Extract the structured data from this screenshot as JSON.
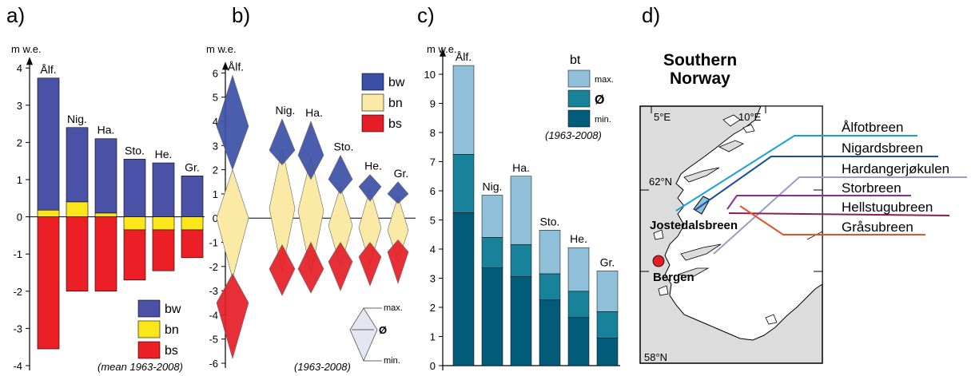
{
  "colors": {
    "bw": "#4a52a8",
    "bn": "#fbe61a",
    "bs": "#ec1f27",
    "bw_light": "#3c4fa6",
    "bn_light": "#fbe9a6",
    "bs_light": "#e41d26",
    "bt_max": "#8fbfd9",
    "bt_mean": "#17829a",
    "bt_min": "#035b7a",
    "sea": "#dcdcdc",
    "land": "#ffffff"
  },
  "chart_data": [
    {
      "type": "bar",
      "panel": "a)",
      "unit": "m w.e.",
      "ylim": [
        -4,
        4
      ],
      "yticks": [
        4,
        3,
        2,
        1,
        0,
        -1,
        -2,
        -3,
        -4
      ],
      "categories": [
        "Ålf.",
        "Nig.",
        "Ha.",
        "Sto.",
        "He.",
        "Gr."
      ],
      "series": [
        {
          "name": "bw",
          "values": [
            3.55,
            2.0,
            2.0,
            1.55,
            1.45,
            1.1
          ]
        },
        {
          "name": "bn",
          "values": [
            0.18,
            0.4,
            0.1,
            -0.35,
            -0.35,
            -0.35
          ]
        },
        {
          "name": "bs",
          "values": [
            -3.55,
            -2.0,
            -2.0,
            -1.7,
            -1.45,
            -1.1
          ]
        }
      ],
      "legend": [
        "bw",
        "bn",
        "bs"
      ],
      "note": "(mean 1963-2008)"
    },
    {
      "type": "range",
      "panel": "b)",
      "unit": "m w.e.",
      "ylim": [
        -6,
        6
      ],
      "yticks": [
        6,
        5,
        4,
        3,
        2,
        1,
        0,
        -1,
        -2,
        -3,
        -4,
        -5,
        -6
      ],
      "categories": [
        "Ålf.",
        "Nig.",
        "Ha.",
        "Sto.",
        "He.",
        "Gr."
      ],
      "series": [
        {
          "name": "bw",
          "min": [
            2.0,
            2.2,
            1.6,
            1.0,
            0.7,
            0.6
          ],
          "mean": [
            3.8,
            2.8,
            2.6,
            1.6,
            1.3,
            1.0
          ],
          "max": [
            5.9,
            4.1,
            4.0,
            2.6,
            1.8,
            1.5
          ]
        },
        {
          "name": "bn",
          "min": [
            -2.5,
            -2.2,
            -2.3,
            -2.0,
            -1.9,
            -1.8
          ],
          "mean": [
            0.0,
            0.4,
            0.3,
            -0.3,
            -0.4,
            -0.5
          ],
          "max": [
            2.0,
            2.9,
            2.5,
            1.3,
            1.2,
            0.9
          ]
        },
        {
          "name": "bs",
          "min": [
            -5.8,
            -3.2,
            -3.1,
            -3.0,
            -2.8,
            -2.7
          ],
          "mean": [
            -3.5,
            -2.1,
            -2.1,
            -1.8,
            -1.6,
            -1.4
          ],
          "max": [
            -2.3,
            -1.1,
            -1.0,
            -1.0,
            -1.0,
            -0.9
          ]
        }
      ],
      "legend": [
        "bw",
        "bn",
        "bs"
      ],
      "key": {
        "max": "max.",
        "mean": "Ø",
        "min": "min."
      },
      "note": "(1963-2008)"
    },
    {
      "type": "bar",
      "panel": "c)",
      "unit": "m w.e.",
      "ylim": [
        0,
        10.5
      ],
      "yticks": [
        10,
        9,
        8,
        7,
        6,
        5,
        4,
        3,
        2,
        1,
        0
      ],
      "categories": [
        "Ålf.",
        "Nig.",
        "Ha.",
        "Sto.",
        "He.",
        "Gr."
      ],
      "series": [
        {
          "name": "min.",
          "values": [
            5.25,
            3.35,
            3.05,
            2.25,
            1.65,
            0.95
          ]
        },
        {
          "name": "Ø",
          "values": [
            7.25,
            4.4,
            4.15,
            3.15,
            2.55,
            1.85
          ]
        },
        {
          "name": "max.",
          "values": [
            10.3,
            5.85,
            6.5,
            4.65,
            4.05,
            3.25
          ]
        }
      ],
      "legend_title": "bt",
      "legend": [
        "max.",
        "Ø",
        "min."
      ],
      "note": "(1963-2008)"
    }
  ],
  "map": {
    "panel": "d)",
    "title_line1": "Southern",
    "title_line2": "Norway",
    "lon_labels": [
      "5°E",
      "10°E"
    ],
    "lat_labels": [
      "62°N",
      "58°N"
    ],
    "places": [
      "Jostedalsbreen",
      "Bergen"
    ],
    "glaciers": [
      {
        "name": "Ålfotbreen",
        "color": "#1aa0d8"
      },
      {
        "name": "Nigardsbreen",
        "color": "#1b4ea0"
      },
      {
        "name": "Hardangerjøkulen",
        "color": "#9a9cc8"
      },
      {
        "name": "Storbreen",
        "color": "#8a2d9b"
      },
      {
        "name": "Hellstugubreen",
        "color": "#8e1f4c"
      },
      {
        "name": "Gråsubreen",
        "color": "#e8522b"
      }
    ]
  }
}
